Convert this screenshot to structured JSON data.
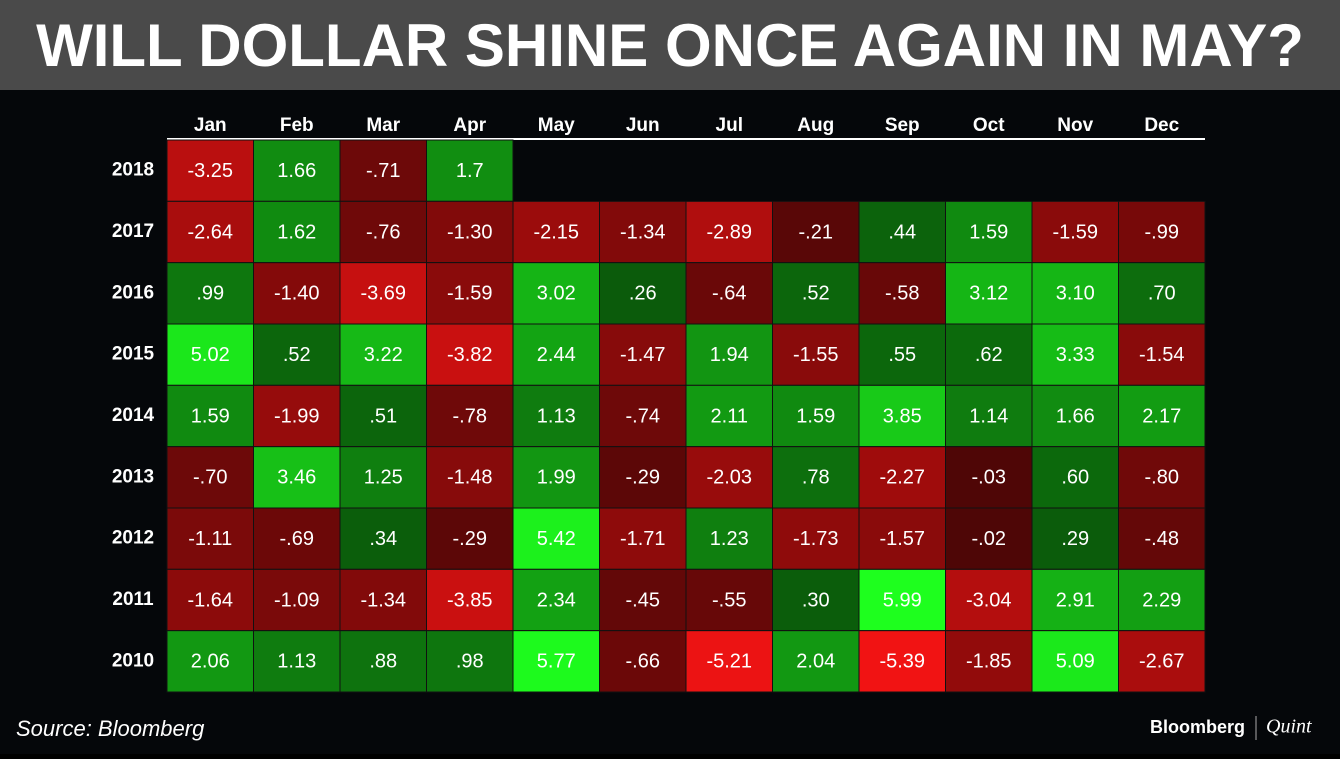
{
  "chart_data": {
    "type": "heatmap",
    "title": "WILL DOLLAR SHINE ONCE AGAIN IN MAY?",
    "columns": [
      "Jan",
      "Feb",
      "Mar",
      "Apr",
      "May",
      "Jun",
      "Jul",
      "Aug",
      "Sep",
      "Oct",
      "Nov",
      "Dec"
    ],
    "rows": [
      "2018",
      "2017",
      "2016",
      "2015",
      "2014",
      "2013",
      "2012",
      "2011",
      "2010"
    ],
    "values": [
      [
        -3.25,
        1.66,
        -0.71,
        1.7,
        null,
        null,
        null,
        null,
        null,
        null,
        null,
        null
      ],
      [
        -2.64,
        1.62,
        -0.76,
        -1.3,
        -2.15,
        -1.34,
        -2.89,
        -0.21,
        0.44,
        1.59,
        -1.59,
        -0.99
      ],
      [
        0.99,
        -1.4,
        -3.69,
        -1.59,
        3.02,
        0.26,
        -0.64,
        0.52,
        -0.58,
        3.12,
        3.1,
        0.7
      ],
      [
        5.02,
        0.52,
        3.22,
        -3.82,
        2.44,
        -1.47,
        1.94,
        -1.55,
        0.55,
        0.62,
        3.33,
        -1.54
      ],
      [
        1.59,
        -1.99,
        0.51,
        -0.78,
        1.13,
        -0.74,
        2.11,
        1.59,
        3.85,
        1.14,
        1.66,
        2.17
      ],
      [
        -0.7,
        3.46,
        1.25,
        -1.48,
        1.99,
        -0.29,
        -2.03,
        0.78,
        -2.27,
        -0.03,
        0.6,
        -0.8
      ],
      [
        -1.11,
        -0.69,
        0.34,
        -0.29,
        5.42,
        -1.71,
        1.23,
        -1.73,
        -1.57,
        -0.02,
        0.29,
        -0.48
      ],
      [
        -1.64,
        -1.09,
        -1.34,
        -3.85,
        2.34,
        -0.45,
        -0.55,
        0.3,
        5.99,
        -3.04,
        2.91,
        2.29
      ],
      [
        2.06,
        1.13,
        0.88,
        0.98,
        5.77,
        -0.66,
        -5.21,
        2.04,
        -5.39,
        -1.85,
        5.09,
        -2.67
      ]
    ],
    "value_labels": [
      [
        "-3.25",
        "1.66",
        "-.71",
        "1.7",
        null,
        null,
        null,
        null,
        null,
        null,
        null,
        null
      ],
      [
        "-2.64",
        "1.62",
        "-.76",
        "-1.30",
        "-2.15",
        "-1.34",
        "-2.89",
        "-.21",
        ".44",
        "1.59",
        "-1.59",
        "-.99"
      ],
      [
        ".99",
        "-1.40",
        "-3.69",
        "-1.59",
        "3.02",
        ".26",
        "-.64",
        ".52",
        "-.58",
        "3.12",
        "3.10",
        ".70"
      ],
      [
        "5.02",
        ".52",
        "3.22",
        "-3.82",
        "2.44",
        "-1.47",
        "1.94",
        "-1.55",
        ".55",
        ".62",
        "3.33",
        "-1.54"
      ],
      [
        "1.59",
        "-1.99",
        ".51",
        "-.78",
        "1.13",
        "-.74",
        "2.11",
        "1.59",
        "3.85",
        "1.14",
        "1.66",
        "2.17"
      ],
      [
        "-.70",
        "3.46",
        "1.25",
        "-1.48",
        "1.99",
        "-.29",
        "-2.03",
        ".78",
        "-2.27",
        "-.03",
        ".60",
        "-.80"
      ],
      [
        "-1.11",
        "-.69",
        ".34",
        "-.29",
        "5.42",
        "-1.71",
        "1.23",
        "-1.73",
        "-1.57",
        "-.02",
        ".29",
        "-.48"
      ],
      [
        "-1.64",
        "-1.09",
        "-1.34",
        "-3.85",
        "2.34",
        "-.45",
        "-.55",
        ".30",
        "5.99",
        "-3.04",
        "2.91",
        "2.29"
      ],
      [
        "2.06",
        "1.13",
        ".88",
        ".98",
        "5.77",
        "-.66",
        "-5.21",
        "2.04",
        "-5.39",
        "-1.85",
        "5.09",
        "-2.67"
      ]
    ],
    "negative_color": "#ff1414",
    "positive_color": "#1eff1e",
    "source": "Source: Bloomberg",
    "brand": "Bloomberg",
    "brand_partner": "Quint"
  }
}
